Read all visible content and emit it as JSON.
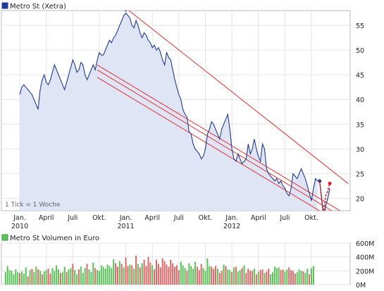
{
  "chart_data": [
    {
      "type": "line",
      "legend": {
        "label": "Metro St (Xetra)",
        "color": "#1f3a93"
      },
      "note": "1 Tick = 1 Woche",
      "y_ticks": [
        20,
        25,
        30,
        35,
        40,
        45,
        50,
        55
      ],
      "ylim": [
        17.5,
        58
      ],
      "x_ticks": [
        {
          "t": 0,
          "label": "Jan.",
          "year": "2010"
        },
        {
          "t": 13,
          "label": "April",
          "year": ""
        },
        {
          "t": 26,
          "label": "Juli",
          "year": ""
        },
        {
          "t": 39,
          "label": "Okt.",
          "year": ""
        },
        {
          "t": 52,
          "label": "Jan.",
          "year": "2011"
        },
        {
          "t": 65,
          "label": "April",
          "year": ""
        },
        {
          "t": 78,
          "label": "Juli",
          "year": ""
        },
        {
          "t": 91,
          "label": "Okt.",
          "year": ""
        },
        {
          "t": 104,
          "label": "Jan.",
          "year": "2012"
        },
        {
          "t": 117,
          "label": "April",
          "year": ""
        },
        {
          "t": 130,
          "label": "Juli",
          "year": ""
        },
        {
          "t": 143,
          "label": "Okt.",
          "year": ""
        }
      ],
      "xlim": [
        -9,
        162
      ],
      "series": [
        {
          "color": "#1f3a93",
          "fill": "#dfe5f5",
          "values": [
            41,
            42.5,
            43,
            42.5,
            42,
            41.5,
            41,
            40,
            39,
            38,
            42,
            44,
            45,
            43.5,
            43,
            44,
            45.5,
            47,
            46,
            45,
            44,
            43,
            42,
            43.5,
            45,
            46.5,
            48,
            47,
            45.5,
            46,
            47.5,
            47,
            45,
            44,
            45,
            46,
            47,
            46,
            48,
            49.5,
            49,
            49,
            50,
            51,
            52,
            51.5,
            52.5,
            53,
            54,
            55,
            56,
            57,
            57.5,
            57,
            56.5,
            55,
            54.5,
            56,
            55,
            53.5,
            52.5,
            53.5,
            53,
            52,
            51.5,
            50.5,
            51,
            50,
            50.5,
            49.5,
            48,
            47,
            49.5,
            48.5,
            48,
            46,
            44,
            42.5,
            41,
            40,
            38,
            37,
            36.5,
            33.5,
            33,
            31,
            30,
            29.5,
            29,
            28,
            28.5,
            30,
            33,
            34,
            35.5,
            35,
            34,
            33,
            32,
            34,
            35,
            36,
            37,
            34,
            30,
            28,
            27.5,
            29,
            28,
            27,
            27.5,
            28,
            31,
            29,
            30,
            32,
            30,
            28.5,
            27.5,
            31,
            30,
            26,
            25,
            24.5,
            24,
            23.5,
            24,
            23,
            23.5,
            22.5,
            22,
            21,
            20.5,
            22,
            25,
            24.5,
            24,
            25,
            26,
            25,
            24,
            22.5,
            21,
            19.5,
            22,
            24,
            23.5
          ]
        },
        {
          "color": "#1f3a93",
          "t_start": 147,
          "values": [
            23.5,
            20,
            15.5,
            18.5,
            20,
            22
          ]
        },
        {
          "color": "#e02020",
          "dashed": true,
          "t_start": 147,
          "values": [
            23.5,
            20,
            17,
            20.5,
            21.5,
            23
          ]
        }
      ],
      "trend_lines": [
        {
          "color": "#e03030",
          "from": [
            52,
            58.5
          ],
          "to": [
            161,
            23
          ]
        },
        {
          "color": "#e03030",
          "from": [
            38,
            47
          ],
          "to": [
            161,
            16.5
          ]
        },
        {
          "color": "#e03030",
          "from": [
            38,
            46
          ],
          "to": [
            161,
            15.5
          ]
        },
        {
          "color": "#e03030",
          "from": [
            38,
            44.5
          ],
          "to": [
            161,
            14
          ]
        }
      ],
      "marker": {
        "t": 52,
        "value": 58.3
      }
    },
    {
      "type": "bar",
      "legend": {
        "label": "Metro St Volumen in Euro",
        "color": "#5cc25c"
      },
      "y_ticks": [
        {
          "v": 0,
          "label": "0M"
        },
        {
          "v": 200,
          "label": "200M"
        },
        {
          "v": 400,
          "label": "400M"
        },
        {
          "v": 600,
          "label": "600M"
        }
      ],
      "ylim": [
        0,
        600
      ],
      "colors": {
        "up": "#5cc25c",
        "down": "#d96a6a"
      },
      "values": [
        180,
        270,
        210,
        200,
        150,
        220,
        180,
        170,
        190,
        160,
        250,
        120,
        210,
        230,
        180,
        260,
        220,
        200,
        150,
        190,
        210,
        230,
        160,
        240,
        200,
        280,
        220,
        170,
        180,
        260,
        180,
        220,
        240,
        300,
        210,
        150,
        220,
        260,
        170,
        240,
        300,
        220,
        180,
        320,
        240,
        210,
        200,
        280,
        260,
        230,
        290,
        270,
        240,
        370,
        310,
        260,
        340,
        300,
        250,
        390,
        270,
        290,
        280,
        230,
        420,
        300,
        250,
        310,
        360,
        270,
        400,
        320,
        280,
        220,
        360,
        300,
        250,
        380,
        340,
        290,
        260,
        360,
        310,
        260,
        280,
        210,
        330,
        280,
        240,
        200,
        310,
        270,
        230,
        330,
        260,
        210,
        300,
        240,
        200,
        380,
        270,
        260,
        230,
        270,
        230,
        170,
        200,
        290,
        270,
        220,
        210,
        180,
        250,
        260,
        190,
        210,
        240,
        280,
        170,
        230,
        200,
        200,
        230,
        150,
        190,
        210,
        220,
        170,
        190,
        230,
        150,
        180,
        260,
        240,
        250,
        210,
        220,
        190,
        220,
        250,
        210,
        200,
        160,
        180,
        220,
        200,
        190,
        170,
        230,
        150,
        240,
        270
      ],
      "up_down": [
        1,
        1,
        1,
        1,
        1,
        1,
        1,
        0,
        1,
        1,
        1,
        0,
        1,
        0,
        1,
        1,
        0,
        1,
        0,
        1,
        1,
        0,
        0,
        1,
        1,
        1,
        1,
        0,
        1,
        1,
        0,
        1,
        1,
        0,
        1,
        1,
        0,
        1,
        1,
        1,
        0,
        1,
        1,
        1,
        0,
        1,
        1,
        1,
        1,
        1,
        1,
        1,
        1,
        1,
        0,
        0,
        1,
        0,
        1,
        0,
        0,
        1,
        0,
        1,
        0,
        1,
        0,
        1,
        0,
        0,
        0,
        0,
        1,
        0,
        0,
        0,
        0,
        0,
        0,
        0,
        0,
        0,
        0,
        0,
        0,
        0,
        1,
        1,
        1,
        0,
        1,
        1,
        1,
        1,
        0,
        0,
        0,
        1,
        1,
        1,
        1,
        0,
        0,
        0,
        1,
        0,
        0,
        1,
        0,
        1,
        1,
        0,
        1,
        0,
        1,
        1,
        0,
        1,
        0,
        0,
        0,
        0,
        1,
        0,
        1,
        0,
        0,
        1,
        0,
        0,
        1,
        1,
        1,
        1,
        1,
        0,
        0,
        1,
        1,
        0,
        0,
        0,
        0,
        1,
        1,
        1,
        0,
        1,
        1,
        0,
        1,
        1
      ]
    }
  ]
}
